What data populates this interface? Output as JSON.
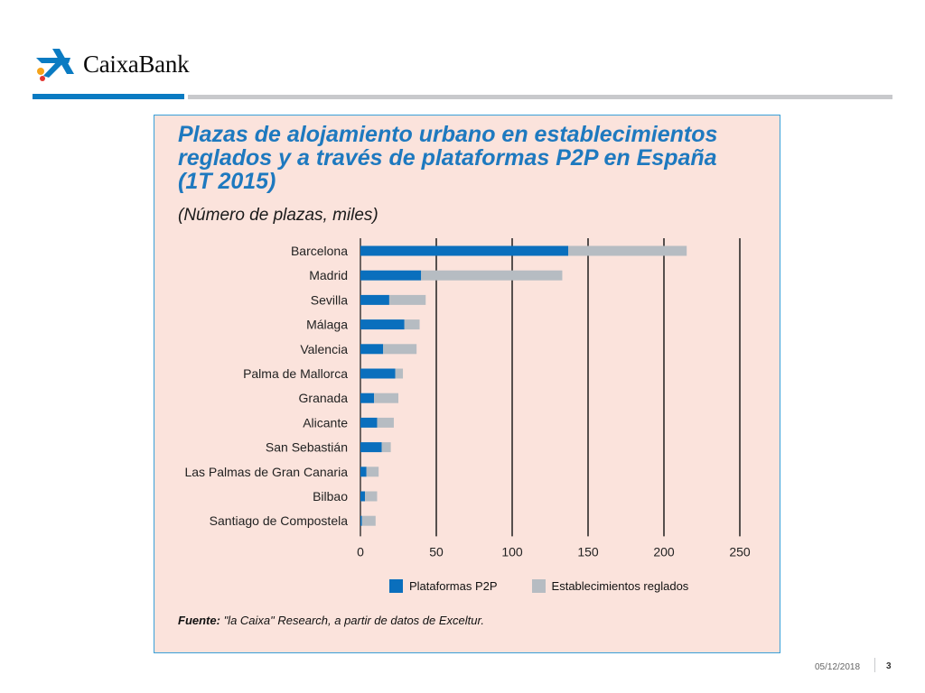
{
  "brand": {
    "name": "CaixaBank",
    "colors": {
      "blue": "#0a7bc2",
      "gray": "#c8c9cc",
      "star_orange": "#f5a31a",
      "star_red": "#e3342f"
    }
  },
  "chart_data": {
    "type": "bar",
    "orientation": "horizontal",
    "stacked": true,
    "title": "Plazas de alojamiento urbano en establecimientos reglados y a través de plataformas P2P en España (1T 2015)",
    "title_lines": [
      "Plazas de alojamiento urbano en establecimientos",
      "reglados y a través de plataformas P2P en España",
      "(1T 2015)"
    ],
    "subtitle": "(Número de plazas, miles)",
    "categories": [
      "Barcelona",
      "Madrid",
      "Sevilla",
      "Málaga",
      "Valencia",
      "Palma de Mallorca",
      "Granada",
      "Alicante",
      "San Sebastián",
      "Las Palmas de Gran Canaria",
      "Bilbao",
      "Santiago de Compostela"
    ],
    "series": [
      {
        "name": "Plataformas P2P",
        "color": "#0a6fbd",
        "values": [
          137,
          40,
          19,
          29,
          15,
          23,
          9,
          11,
          14,
          4,
          3,
          1
        ]
      },
      {
        "name": "Establecimientos reglados",
        "color": "#b6bcc2",
        "values": [
          78,
          93,
          24,
          10,
          22,
          5,
          16,
          11,
          6,
          8,
          8,
          9
        ]
      }
    ],
    "xlim": [
      0,
      250
    ],
    "xticks": [
      "0",
      "50",
      "100",
      "150",
      "200",
      "250"
    ],
    "grid": true,
    "legend_position": "bottom"
  },
  "source": {
    "label": "Fuente:",
    "text": " \"la Caixa\" Research, a partir de datos de Exceltur."
  },
  "footer": {
    "date": "05/12/2018",
    "page": "3"
  }
}
